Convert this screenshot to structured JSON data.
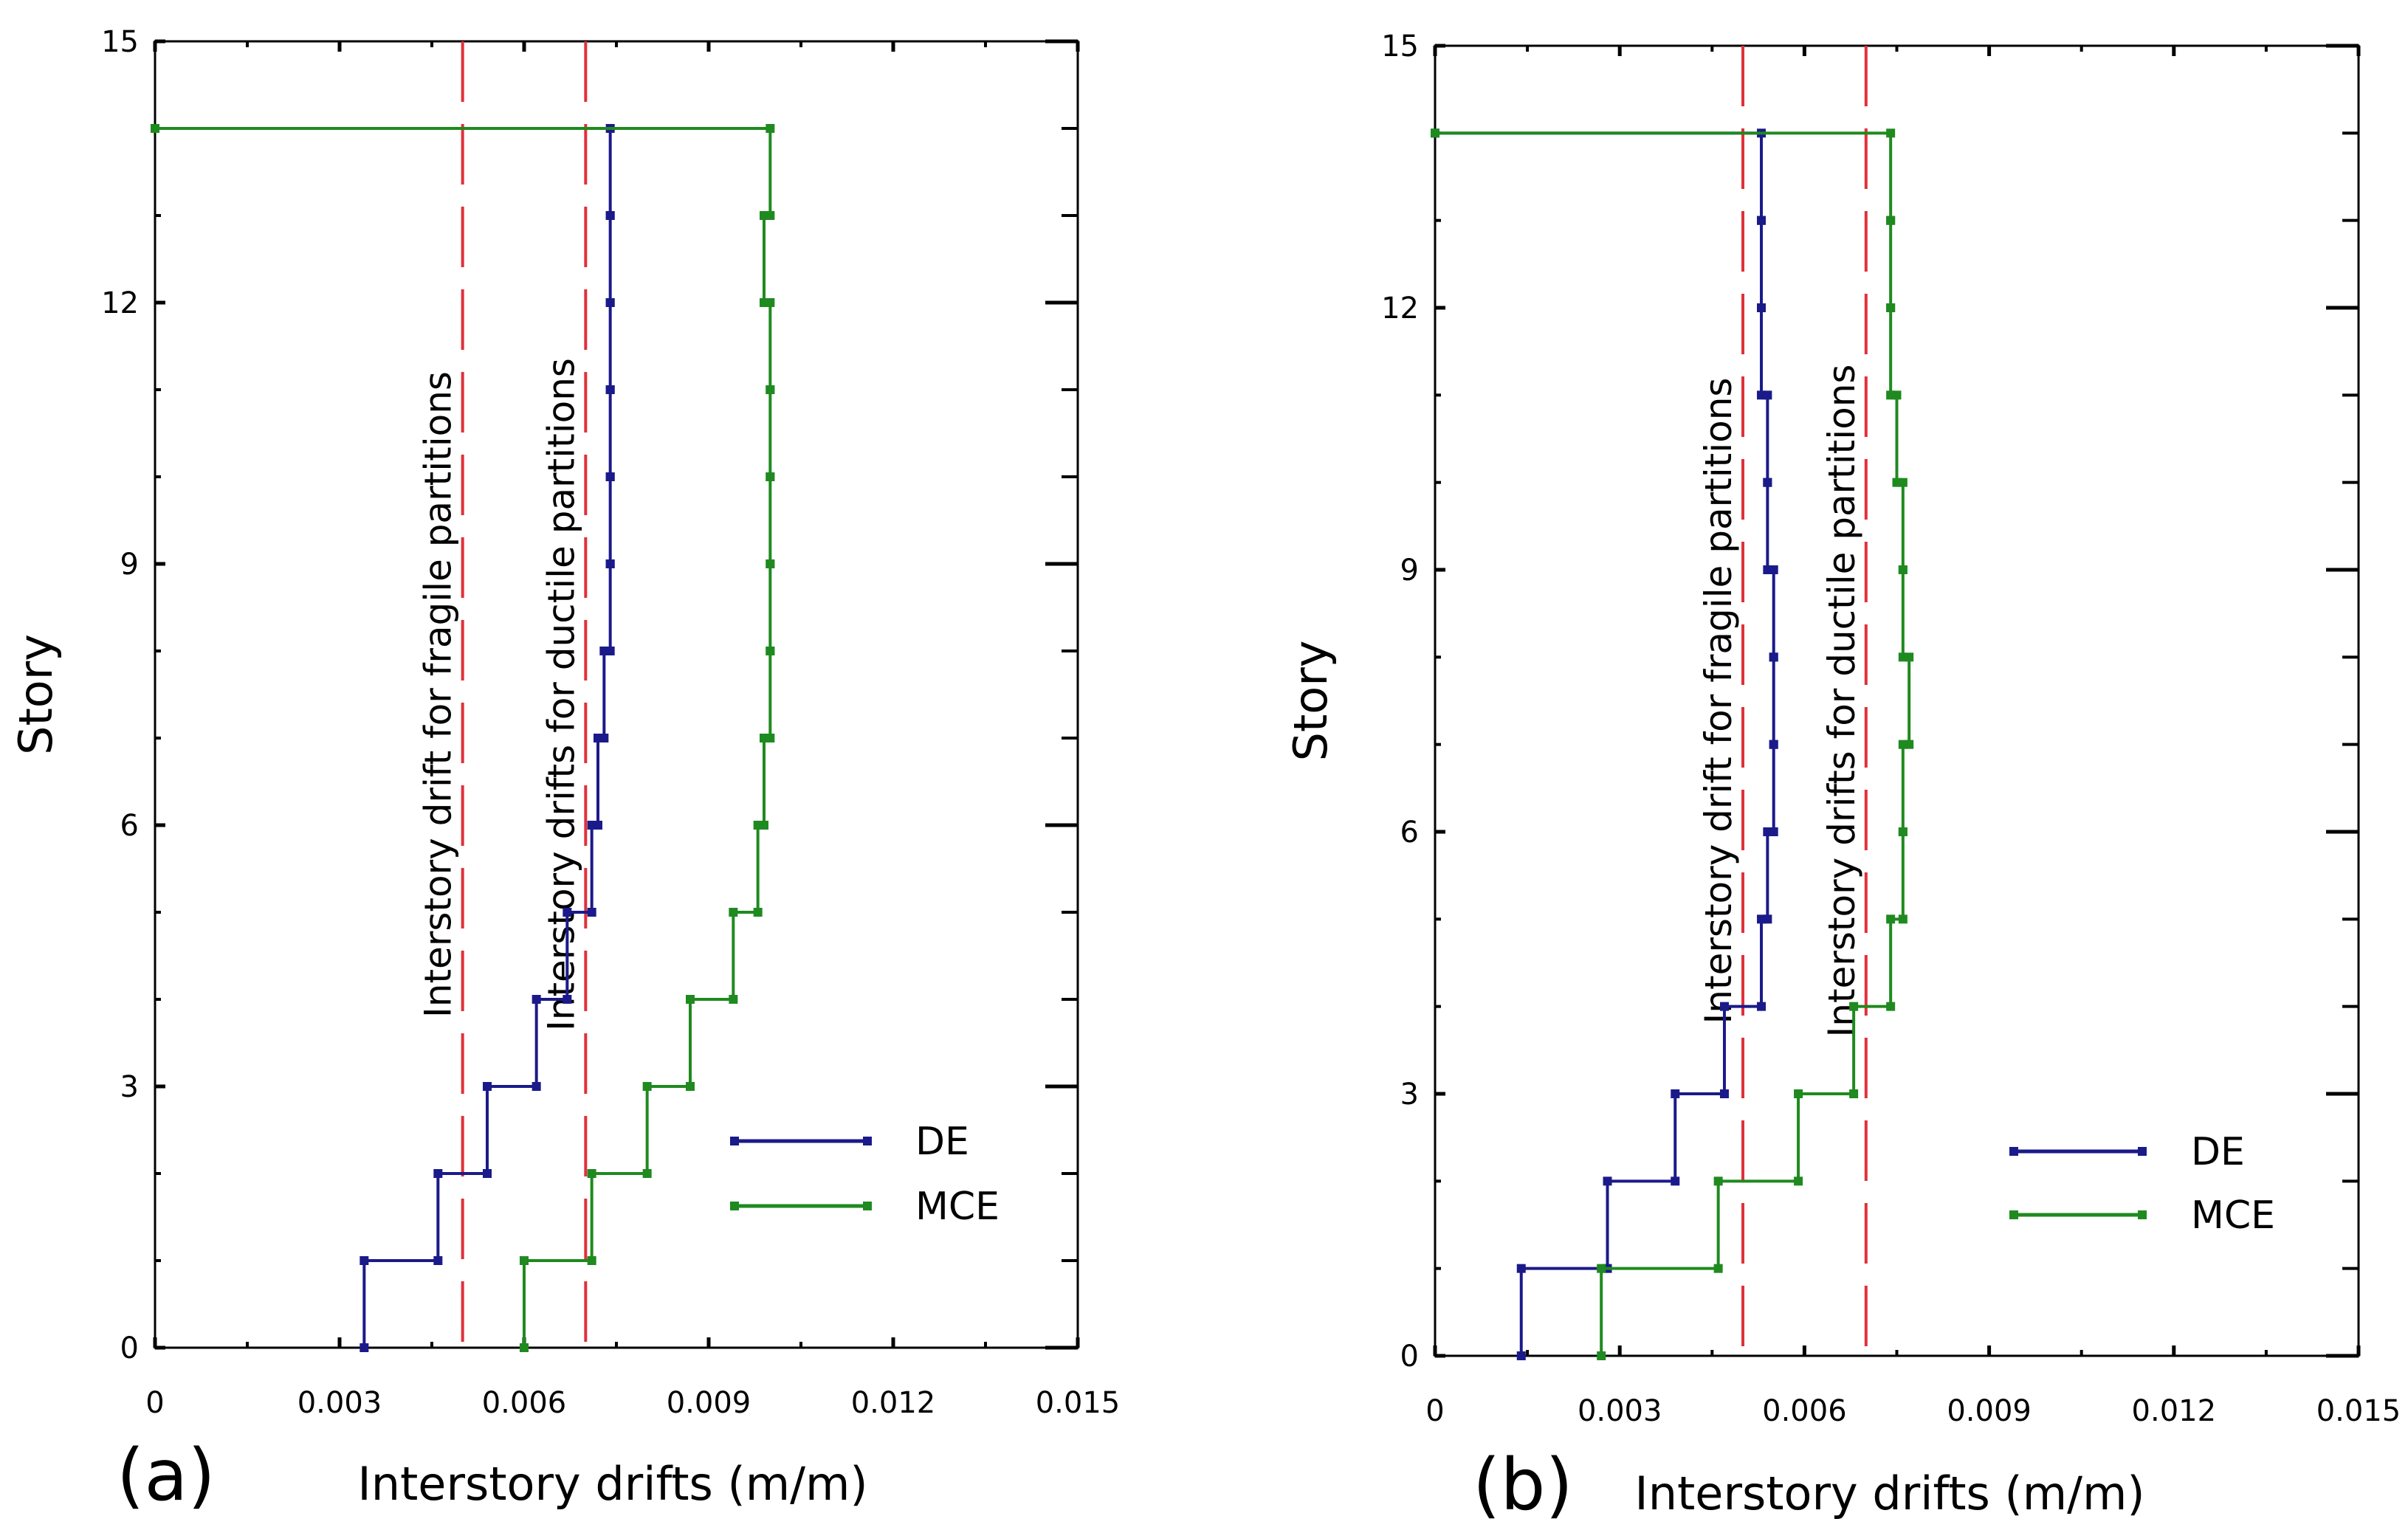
{
  "chart_data": [
    {
      "type": "line",
      "panel_label": "(a)",
      "xlabel": "Interstory drifts (m/m)",
      "ylabel": "Story",
      "xlim": [
        0,
        0.015
      ],
      "ylim": [
        0,
        15
      ],
      "xticks": [
        0,
        0.003,
        0.006,
        0.009,
        0.012,
        0.015
      ],
      "xtick_labels": [
        "0",
        "0.003",
        "0.006",
        "0.009",
        "0.012",
        "0.015"
      ],
      "yticks": [
        0,
        3,
        6,
        9,
        12,
        15
      ],
      "ytick_labels": [
        "0",
        "3",
        "6",
        "9",
        "12",
        "15"
      ],
      "legend_position": "lower-right",
      "series": [
        {
          "name": "DE",
          "color": "#1b1a8a",
          "drifts": [
            0.0034,
            0.0046,
            0.0054,
            0.0062,
            0.0067,
            0.0071,
            0.0072,
            0.0073,
            0.0074,
            0.0074,
            0.0074,
            0.0074,
            0.0074,
            0.0074
          ]
        },
        {
          "name": "MCE",
          "color": "#1f8a1f",
          "drifts": [
            0.006,
            0.0071,
            0.008,
            0.0087,
            0.0094,
            0.0098,
            0.0099,
            0.01,
            0.01,
            0.01,
            0.01,
            0.01,
            0.0099,
            0.01
          ]
        }
      ],
      "reference_lines": [
        {
          "x": 0.005,
          "label": "Interstory drift for fragile partitions",
          "color": "#e0303a"
        },
        {
          "x": 0.007,
          "label": "Interstory drifts for ductile partitions",
          "color": "#e0303a"
        }
      ]
    },
    {
      "type": "line",
      "panel_label": "(b)",
      "xlabel": "Interstory drifts (m/m)",
      "ylabel": "Story",
      "xlim": [
        0,
        0.015
      ],
      "ylim": [
        0,
        15
      ],
      "xticks": [
        0,
        0.003,
        0.006,
        0.009,
        0.012,
        0.015
      ],
      "xtick_labels": [
        "0",
        "0.003",
        "0.006",
        "0.009",
        "0.012",
        "0.015"
      ],
      "yticks": [
        0,
        3,
        6,
        9,
        12,
        15
      ],
      "ytick_labels": [
        "0",
        "3",
        "6",
        "9",
        "12",
        "15"
      ],
      "legend_position": "lower-right",
      "series": [
        {
          "name": "DE",
          "color": "#1b1a8a",
          "drifts": [
            0.0014,
            0.0028,
            0.0039,
            0.0047,
            0.0053,
            0.0054,
            0.0055,
            0.0055,
            0.0055,
            0.0054,
            0.0054,
            0.0053,
            0.0053,
            0.0053
          ]
        },
        {
          "name": "MCE",
          "color": "#1f8a1f",
          "drifts": [
            0.0027,
            0.0046,
            0.0059,
            0.0068,
            0.0074,
            0.0076,
            0.0076,
            0.0077,
            0.0076,
            0.0076,
            0.0075,
            0.0074,
            0.0074,
            0.0074
          ]
        }
      ],
      "reference_lines": [
        {
          "x": 0.005,
          "label": "Interstory drift for fragile partitions",
          "color": "#e0303a"
        },
        {
          "x": 0.007,
          "label": "Interstory drifts for ductile partitions",
          "color": "#e0303a"
        }
      ]
    }
  ]
}
